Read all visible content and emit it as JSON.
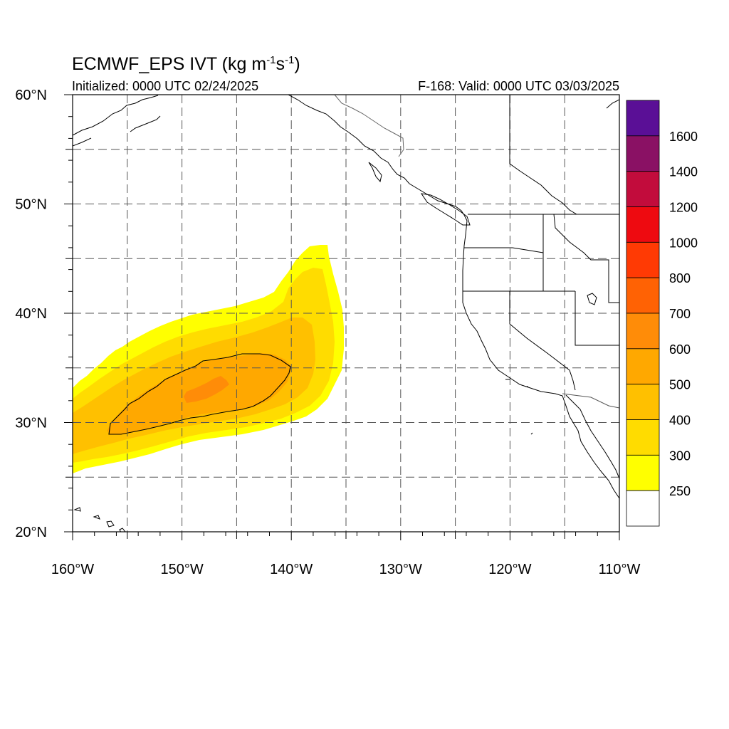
{
  "header": {
    "title": "ECMWF_EPS IVT (kg m",
    "title_exp1": "-1",
    "title_mid": "s",
    "title_exp2": "-1",
    "title_end": ")",
    "init": "Initialized: 0000 UTC 02/24/2025",
    "valid": "F-168: Valid: 0000 UTC 03/03/2025"
  },
  "axes": {
    "lat_labels": [
      "60°N",
      "50°N",
      "40°N",
      "30°N",
      "20°N"
    ],
    "lon_labels": [
      "160°W",
      "150°W",
      "140°W",
      "130°W",
      "120°W",
      "110°W"
    ]
  },
  "colorbar": {
    "labels": [
      "1600",
      "1400",
      "1200",
      "1000",
      "800",
      "700",
      "600",
      "500",
      "400",
      "300",
      "250"
    ],
    "colors": [
      "#5a0f96",
      "#8a1164",
      "#c20c3c",
      "#ee0a10",
      "#ff3a04",
      "#ff6204",
      "#ff8c08",
      "#ffa800",
      "#ffc000",
      "#ffdc00",
      "#ffff00",
      "#ffffff"
    ]
  },
  "chart_data": {
    "type": "heatmap",
    "title": "ECMWF_EPS IVT (kg m-1 s-1)",
    "lon_range": [
      -160,
      -110
    ],
    "lat_range": [
      20,
      60
    ],
    "color_levels": [
      250,
      300,
      400,
      500,
      600,
      700,
      800,
      1000,
      1200,
      1400,
      1600
    ],
    "grid": true,
    "legend": "right",
    "features": [
      {
        "name": "atmospheric river plume",
        "lon_range": [
          -160,
          -135
        ],
        "lat_range": [
          25.5,
          46
        ],
        "max_level": 600
      },
      {
        "name": "contour",
        "lon_range": [
          -156.5,
          -140
        ],
        "lat_range": [
          29,
          36
        ],
        "level": 500
      }
    ]
  }
}
